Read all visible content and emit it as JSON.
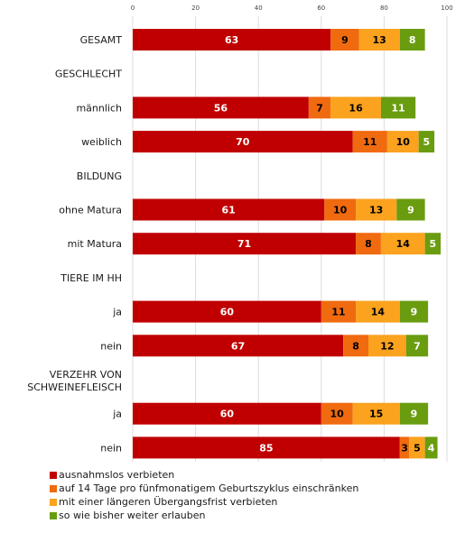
{
  "chart_data": {
    "type": "bar",
    "orientation": "horizontal",
    "stacked": true,
    "title": "",
    "xlabel": "",
    "ylabel": "",
    "xlim": [
      0,
      100
    ],
    "x_ticks": [
      "0",
      "20",
      "40",
      "60",
      "80",
      "100"
    ],
    "grid": true,
    "legend_position": "bottom",
    "rows": [
      {
        "label": "GESAMT",
        "values": [
          63,
          9,
          13,
          8
        ]
      },
      {
        "label": "GESCHLECHT",
        "values": null
      },
      {
        "label": "männlich",
        "values": [
          56,
          7,
          16,
          11
        ]
      },
      {
        "label": "weiblich",
        "values": [
          70,
          11,
          10,
          5
        ]
      },
      {
        "label": "BILDUNG",
        "values": null
      },
      {
        "label": "ohne Matura",
        "values": [
          61,
          10,
          13,
          9
        ]
      },
      {
        "label": "mit Matura",
        "values": [
          71,
          8,
          14,
          5
        ]
      },
      {
        "label": "TIERE IM HH",
        "values": null
      },
      {
        "label": "ja",
        "values": [
          60,
          11,
          14,
          9
        ]
      },
      {
        "label": "nein",
        "values": [
          67,
          8,
          12,
          7
        ]
      },
      {
        "label": "VERZEHR VON SCHWEINEFLEISCH",
        "label_lines": [
          "VERZEHR VON",
          "SCHWEINEFLEISCH"
        ],
        "values": null
      },
      {
        "label": "ja",
        "values": [
          60,
          10,
          15,
          9
        ]
      },
      {
        "label": "nein",
        "values": [
          85,
          3,
          5,
          4
        ]
      }
    ],
    "series": [
      {
        "name": "ausnahmslos verbieten",
        "color": "#c00000",
        "label_color": "#ffffff"
      },
      {
        "name": "auf 14 Tage pro fünfmonatigem Geburtszyklus einschränken",
        "color": "#f06a0f",
        "label_color": "#000000"
      },
      {
        "name": "mit einer längeren Übergangsfrist verbieten",
        "color": "#fba21e",
        "label_color": "#000000"
      },
      {
        "name": "so wie bisher weiter erlauben",
        "color": "#6a9c10",
        "label_color": "#ffffff"
      }
    ]
  }
}
